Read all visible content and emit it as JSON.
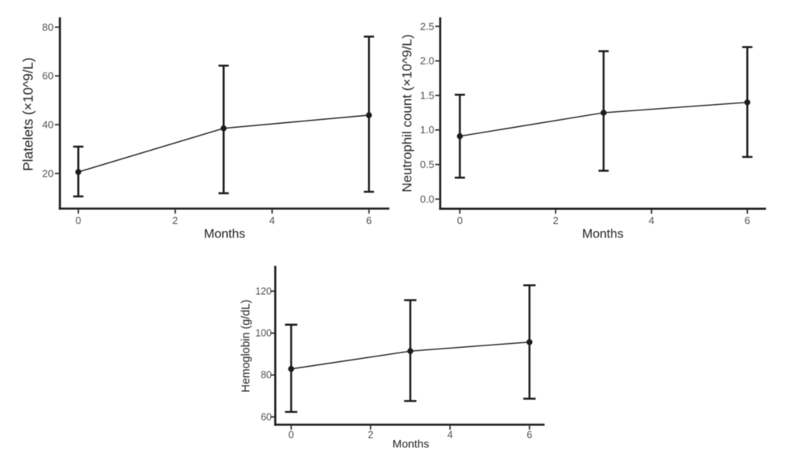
{
  "figure": {
    "background": "#ffffff",
    "line_color": "#1c1c1c",
    "axis_color": "#1c1c1c",
    "tick_color": "#333333",
    "tick_label_color": "#4d4d4d",
    "title_color": "#222222"
  },
  "chart_data": [
    {
      "type": "line",
      "id": "platelets",
      "title": "",
      "ylabel": "Platelets (×10^9/L)",
      "xlabel": "Months",
      "x_ticks": [
        {
          "v": 0,
          "label": "0"
        },
        {
          "v": 2,
          "label": "2"
        },
        {
          "v": 4,
          "label": "4"
        },
        {
          "v": 6,
          "label": "6"
        }
      ],
      "y_ticks": [
        {
          "v": 20,
          "label": "20"
        },
        {
          "v": 40,
          "label": "40"
        },
        {
          "v": 60,
          "label": "60"
        },
        {
          "v": 80,
          "label": "80"
        }
      ],
      "x": [
        0,
        3,
        6
      ],
      "series": [
        {
          "name": "mean with error bars",
          "values": [
            20.6,
            38.5,
            43.9
          ],
          "lo": [
            10.6,
            11.9,
            12.5
          ],
          "hi": [
            31.0,
            64.2,
            76.1
          ]
        }
      ],
      "xlim": [
        -0.38,
        6.42
      ],
      "ylim": [
        5.6,
        84.0
      ],
      "grid": false,
      "legend": "none"
    },
    {
      "type": "line",
      "id": "neutrophils",
      "title": "",
      "ylabel": "Neutrophil count (×10^9/L)",
      "xlabel": "Months",
      "x_ticks": [
        {
          "v": 0,
          "label": "0"
        },
        {
          "v": 2,
          "label": "2"
        },
        {
          "v": 4,
          "label": "4"
        },
        {
          "v": 6,
          "label": "6"
        }
      ],
      "y_ticks": [
        {
          "v": 0.0,
          "label": "0.0"
        },
        {
          "v": 0.5,
          "label": "0.5"
        },
        {
          "v": 1.0,
          "label": "1.0"
        },
        {
          "v": 1.5,
          "label": "1.5"
        },
        {
          "v": 2.0,
          "label": "2.0"
        },
        {
          "v": 2.5,
          "label": "2.5"
        }
      ],
      "x": [
        0,
        3,
        6
      ],
      "series": [
        {
          "name": "mean with error bars",
          "values": [
            0.91,
            1.25,
            1.4
          ],
          "lo": [
            0.31,
            0.41,
            0.61
          ],
          "hi": [
            1.51,
            2.14,
            2.2
          ]
        }
      ],
      "xlim": [
        -0.41,
        6.39
      ],
      "ylim": [
        -0.14,
        2.63
      ],
      "grid": false,
      "legend": "none"
    },
    {
      "type": "line",
      "id": "hemoglobin",
      "title": "",
      "ylabel": "Hemoglobin (g/dL)",
      "xlabel": "Months",
      "x_ticks": [
        {
          "v": 0,
          "label": "0"
        },
        {
          "v": 2,
          "label": "2"
        },
        {
          "v": 4,
          "label": "4"
        },
        {
          "v": 6,
          "label": "6"
        }
      ],
      "y_ticks": [
        {
          "v": 60,
          "label": "60"
        },
        {
          "v": 80,
          "label": "80"
        },
        {
          "v": 100,
          "label": "100"
        },
        {
          "v": 120,
          "label": "120"
        }
      ],
      "x": [
        0,
        3,
        6
      ],
      "series": [
        {
          "name": "mean with error bars",
          "values": [
            82.9,
            91.4,
            95.7
          ],
          "lo": [
            62.4,
            67.6,
            68.7
          ],
          "hi": [
            104.0,
            115.7,
            122.8
          ]
        }
      ],
      "xlim": [
        -0.4,
        6.38
      ],
      "ylim": [
        56.3,
        132.1
      ],
      "grid": false,
      "legend": "none"
    }
  ]
}
